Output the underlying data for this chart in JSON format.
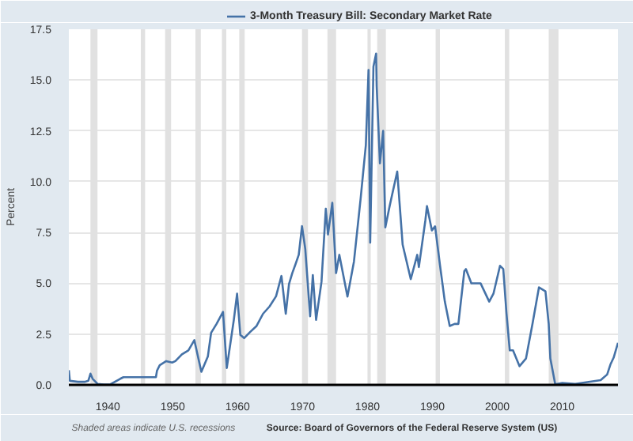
{
  "chart_data": {
    "type": "line",
    "ylabel": "Percent",
    "legend": "top",
    "grid": "y",
    "xlim": [
      "1934-01",
      "2018-08"
    ],
    "ylim": [
      0,
      17.5
    ],
    "xticks": [
      "1940",
      "1950",
      "1960",
      "1970",
      "1980",
      "1990",
      "2000",
      "2010"
    ],
    "yticks": [
      {
        "value": 0,
        "label": "0.0"
      },
      {
        "value": 2.5,
        "label": "2.5"
      },
      {
        "value": 5,
        "label": "5.0"
      },
      {
        "value": 7.5,
        "label": "7.5"
      },
      {
        "value": 10,
        "label": "10.0"
      },
      {
        "value": 12.5,
        "label": "12.5"
      },
      {
        "value": 15,
        "label": "15.0"
      },
      {
        "value": 17.5,
        "label": "17.5"
      }
    ],
    "x": [
      "1934-01",
      "1934-03",
      "1935-06",
      "1936-06",
      "1937-01",
      "1937-05",
      "1937-09",
      "1938-06",
      "1939-06",
      "1940-06",
      "1941-12",
      "1942-06",
      "1947-06",
      "1947-08",
      "1948-01",
      "1949-01",
      "1949-12",
      "1950-06",
      "1951-06",
      "1952-06",
      "1953-05",
      "1954-06",
      "1955-06",
      "1955-12",
      "1956-10",
      "1957-10",
      "1958-05",
      "1959-06",
      "1959-12",
      "1960-06",
      "1961-01",
      "1961-12",
      "1962-12",
      "1963-12",
      "1964-12",
      "1965-12",
      "1966-10",
      "1967-06",
      "1967-12",
      "1968-06",
      "1968-12",
      "1969-06",
      "1969-12",
      "1970-06",
      "1971-03",
      "1971-08",
      "1972-02",
      "1972-12",
      "1973-08",
      "1973-12",
      "1974-08",
      "1975-03",
      "1975-09",
      "1976-12",
      "1977-12",
      "1978-12",
      "1979-10",
      "1980-03",
      "1980-06",
      "1980-12",
      "1981-05",
      "1981-06",
      "1981-12",
      "1982-06",
      "1982-10",
      "1983-06",
      "1984-08",
      "1985-06",
      "1986-09",
      "1987-09",
      "1987-12",
      "1988-12",
      "1989-03",
      "1989-12",
      "1990-06",
      "1991-03",
      "1991-12",
      "1992-09",
      "1993-06",
      "1994-01",
      "1994-12",
      "1995-03",
      "1996-01",
      "1997-06",
      "1998-10",
      "1999-06",
      "2000-06",
      "2000-12",
      "2001-06",
      "2001-12",
      "2002-06",
      "2003-06",
      "2004-06",
      "2005-06",
      "2006-06",
      "2007-06",
      "2007-12",
      "2008-03",
      "2008-12",
      "2010-01",
      "2012-01",
      "2015-12",
      "2016-12",
      "2017-06",
      "2017-12",
      "2018-08"
    ],
    "series": [
      {
        "name": "3-Month Treasury Bill: Secondary Market Rate",
        "color": "#4572a7",
        "values": [
          0.72,
          0.2,
          0.15,
          0.15,
          0.2,
          0.55,
          0.3,
          0.05,
          0.02,
          0.03,
          0.3,
          0.38,
          0.38,
          0.7,
          0.97,
          1.17,
          1.1,
          1.17,
          1.5,
          1.7,
          2.2,
          0.64,
          1.4,
          2.56,
          3.0,
          3.59,
          0.83,
          3.2,
          4.49,
          2.46,
          2.3,
          2.6,
          2.9,
          3.5,
          3.86,
          4.36,
          5.36,
          3.5,
          4.96,
          5.5,
          5.94,
          6.4,
          7.81,
          6.7,
          3.38,
          5.4,
          3.2,
          5.07,
          8.67,
          7.4,
          8.96,
          5.5,
          6.4,
          4.35,
          6.07,
          9.08,
          11.8,
          15.5,
          7.0,
          15.66,
          16.3,
          14.7,
          10.9,
          12.5,
          7.75,
          8.8,
          10.5,
          6.9,
          5.2,
          6.4,
          5.8,
          8.1,
          8.8,
          7.6,
          7.8,
          5.9,
          4.1,
          2.9,
          3.0,
          3.0,
          5.6,
          5.7,
          5.0,
          5.0,
          4.1,
          4.5,
          5.86,
          5.7,
          3.5,
          1.7,
          1.7,
          0.92,
          1.3,
          3.0,
          4.8,
          4.6,
          3.0,
          1.3,
          0.03,
          0.1,
          0.05,
          0.23,
          0.51,
          1.0,
          1.34,
          2.07
        ]
      }
    ],
    "bands": [
      {
        "axis": "x",
        "from": "1937-05",
        "to": "1938-06",
        "color": "#e1e1e1"
      },
      {
        "axis": "x",
        "from": "1945-02",
        "to": "1945-10",
        "color": "#e1e1e1"
      },
      {
        "axis": "x",
        "from": "1948-11",
        "to": "1949-10",
        "color": "#e1e1e1"
      },
      {
        "axis": "x",
        "from": "1953-07",
        "to": "1954-05",
        "color": "#e1e1e1"
      },
      {
        "axis": "x",
        "from": "1957-08",
        "to": "1958-04",
        "color": "#e1e1e1"
      },
      {
        "axis": "x",
        "from": "1960-04",
        "to": "1961-02",
        "color": "#e1e1e1"
      },
      {
        "axis": "x",
        "from": "1969-12",
        "to": "1970-11",
        "color": "#e1e1e1"
      },
      {
        "axis": "x",
        "from": "1973-11",
        "to": "1975-03",
        "color": "#e1e1e1"
      },
      {
        "axis": "x",
        "from": "1980-01",
        "to": "1980-07",
        "color": "#e1e1e1"
      },
      {
        "axis": "x",
        "from": "1981-07",
        "to": "1982-11",
        "color": "#e1e1e1"
      },
      {
        "axis": "x",
        "from": "1990-07",
        "to": "1991-03",
        "color": "#e1e1e1"
      },
      {
        "axis": "x",
        "from": "2001-03",
        "to": "2001-11",
        "color": "#e1e1e1"
      },
      {
        "axis": "x",
        "from": "2007-12",
        "to": "2009-06",
        "color": "#e1e1e1"
      }
    ],
    "annotations": [
      "Shaded areas indicate U.S. recessions",
      "Source: Board of Governors of the Federal Reserve System (US)"
    ]
  }
}
